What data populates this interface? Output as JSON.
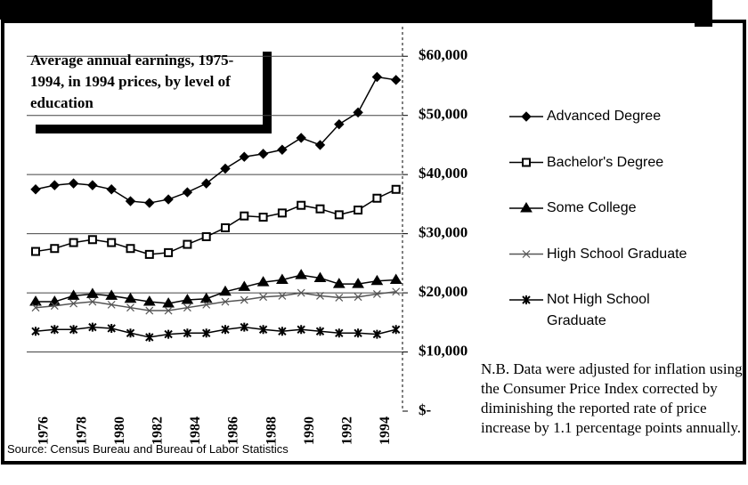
{
  "chart_data": {
    "type": "line",
    "title": "Average annual earnings, 1975-1994, in 1994 prices, by level of education",
    "categories": [
      "1976",
      null,
      "1978",
      null,
      "1980",
      null,
      "1982",
      null,
      "1984",
      null,
      "1986",
      null,
      "1988",
      null,
      "1990",
      null,
      "1992",
      null,
      "1994",
      null
    ],
    "series": [
      {
        "name": "Advanced Degree",
        "color": "#000000",
        "marker": "diamond",
        "values": [
          37500,
          38200,
          38500,
          38200,
          37500,
          35500,
          35200,
          35800,
          37000,
          38500,
          41000,
          43000,
          43500,
          44200,
          46200,
          45000,
          48500,
          50500,
          56500,
          56000
        ]
      },
      {
        "name": "Bachelor's Degree",
        "color": "#000000",
        "marker": "square",
        "values": [
          27000,
          27500,
          28500,
          29000,
          28500,
          27500,
          26500,
          26800,
          28200,
          29500,
          31000,
          33000,
          32800,
          33500,
          34800,
          34200,
          33200,
          34000,
          36000,
          37500
        ]
      },
      {
        "name": "Some College",
        "color": "#000000",
        "marker": "triangle",
        "values": [
          18500,
          18500,
          19500,
          19800,
          19500,
          19000,
          18500,
          18200,
          18800,
          19000,
          20200,
          21000,
          21800,
          22200,
          23000,
          22500,
          21500,
          21500,
          22000,
          22200
        ]
      },
      {
        "name": "High School Graduate",
        "color": "#555555",
        "marker": "x",
        "values": [
          17500,
          17800,
          18200,
          18500,
          18000,
          17500,
          17000,
          17000,
          17500,
          18000,
          18500,
          18800,
          19300,
          19500,
          20000,
          19500,
          19200,
          19300,
          19800,
          20200
        ]
      },
      {
        "name": "Not High School Graduate",
        "color": "#000000",
        "marker": "asterisk",
        "values": [
          13500,
          13800,
          13800,
          14200,
          14000,
          13200,
          12500,
          13000,
          13200,
          13200,
          13800,
          14200,
          13800,
          13500,
          13800,
          13500,
          13200,
          13200,
          13000,
          13800
        ]
      }
    ],
    "ylim": [
      0,
      65000
    ],
    "yticks": [
      {
        "value": 0,
        "label": "$-"
      },
      {
        "value": 10000,
        "label": "$10,000"
      },
      {
        "value": 20000,
        "label": "$20,000"
      },
      {
        "value": 30000,
        "label": "$30,000"
      },
      {
        "value": 40000,
        "label": "$40,000"
      },
      {
        "value": 50000,
        "label": "$50,000"
      },
      {
        "value": 60000,
        "label": "$60,000"
      }
    ],
    "grid": true,
    "note": "N.B. Data were adjusted for inflation using the Consumer Price Index corrected by diminishing the reported rate of price increase by 1.1 percentage points annually.",
    "source": "Source: Census Bureau and Bureau of Labor Statistics"
  }
}
